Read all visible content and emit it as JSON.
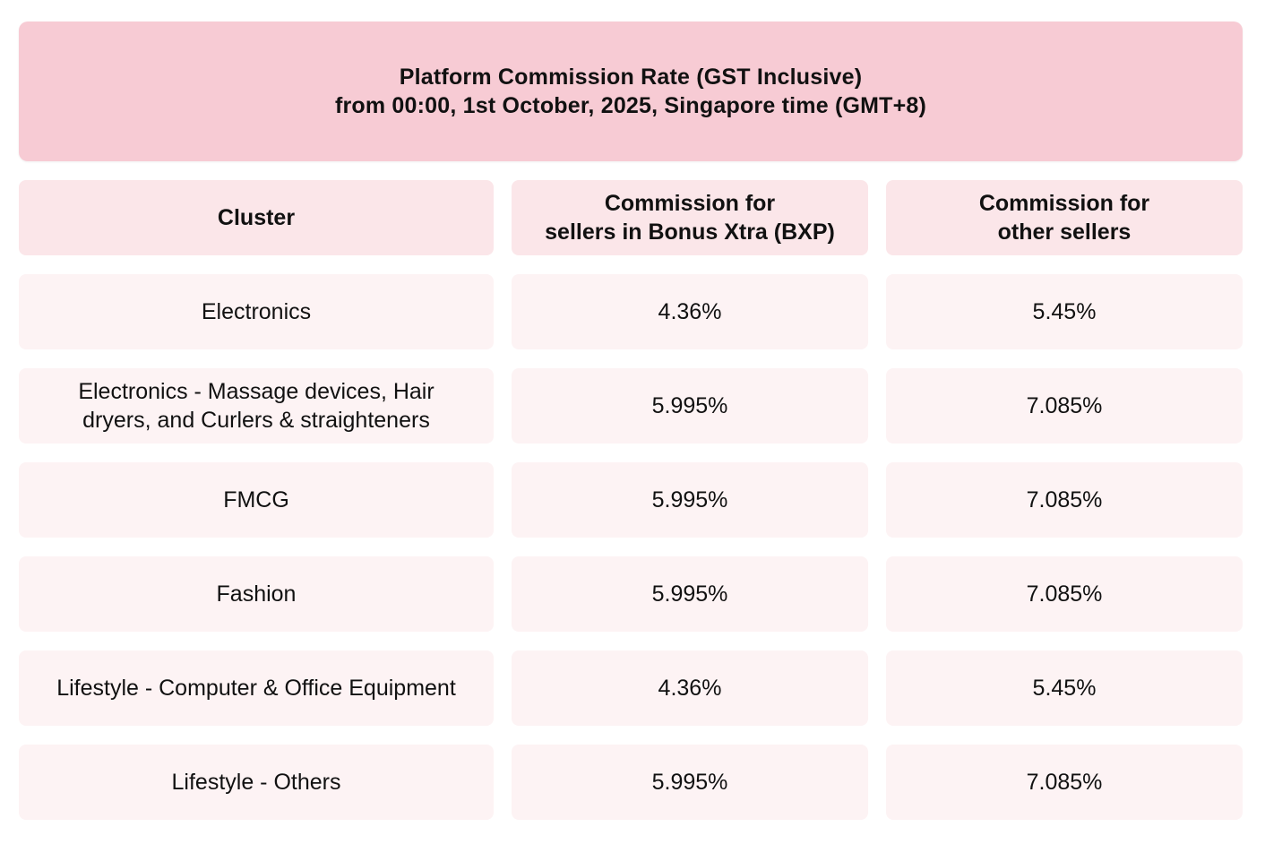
{
  "title": {
    "line1": "Platform Commission Rate (GST Inclusive)",
    "line2": "from 00:00, 1st October, 2025, Singapore time (GMT+8)"
  },
  "headers": {
    "cluster": "Cluster",
    "bxp_line1": "Commission for",
    "bxp_line2": "sellers in Bonus Xtra (BXP)",
    "other_line1": "Commission for",
    "other_line2": "other sellers"
  },
  "rows": [
    {
      "cluster_line1": "Electronics",
      "cluster_line2": "",
      "bxp": "4.36%",
      "other": "5.45%"
    },
    {
      "cluster_line1": "Electronics - Massage devices, Hair",
      "cluster_line2": "dryers, and Curlers & straighteners",
      "bxp": "5.995%",
      "other": "7.085%"
    },
    {
      "cluster_line1": "FMCG",
      "cluster_line2": "",
      "bxp": "5.995%",
      "other": "7.085%"
    },
    {
      "cluster_line1": "Fashion",
      "cluster_line2": "",
      "bxp": "5.995%",
      "other": "7.085%"
    },
    {
      "cluster_line1": "Lifestyle - Computer & Office Equipment",
      "cluster_line2": "",
      "bxp": "4.36%",
      "other": "5.45%"
    },
    {
      "cluster_line1": "Lifestyle - Others",
      "cluster_line2": "",
      "bxp": "5.995%",
      "other": "7.085%"
    }
  ],
  "colors": {
    "banner_bg": "#f7cbd4",
    "header_cell_bg": "#fbe6e9",
    "body_cell_bg": "#fdf3f4"
  }
}
